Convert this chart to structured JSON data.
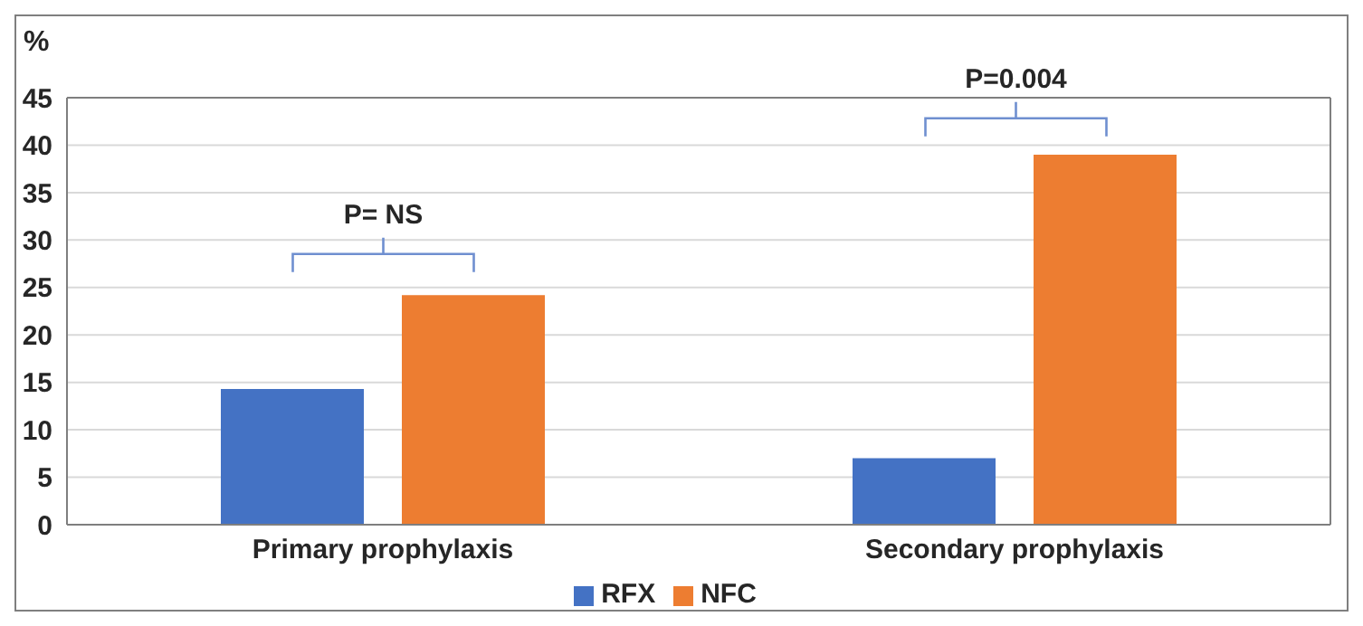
{
  "chart_data": {
    "type": "bar",
    "ylabel": "%",
    "categories": [
      "Primary prophylaxis",
      "Secondary prophylaxis"
    ],
    "series": [
      {
        "name": "RFX",
        "color": "#4472c4",
        "values": [
          14.3,
          7
        ]
      },
      {
        "name": "NFC",
        "color": "#ed7d31",
        "values": [
          24.2,
          39
        ]
      }
    ],
    "ylim": [
      0,
      45
    ],
    "yticks": [
      0,
      5,
      10,
      15,
      20,
      25,
      30,
      35,
      40,
      45
    ],
    "grid": "y",
    "legend": "bottom",
    "annotations": [
      "P= NS",
      "P=0.004"
    ]
  }
}
